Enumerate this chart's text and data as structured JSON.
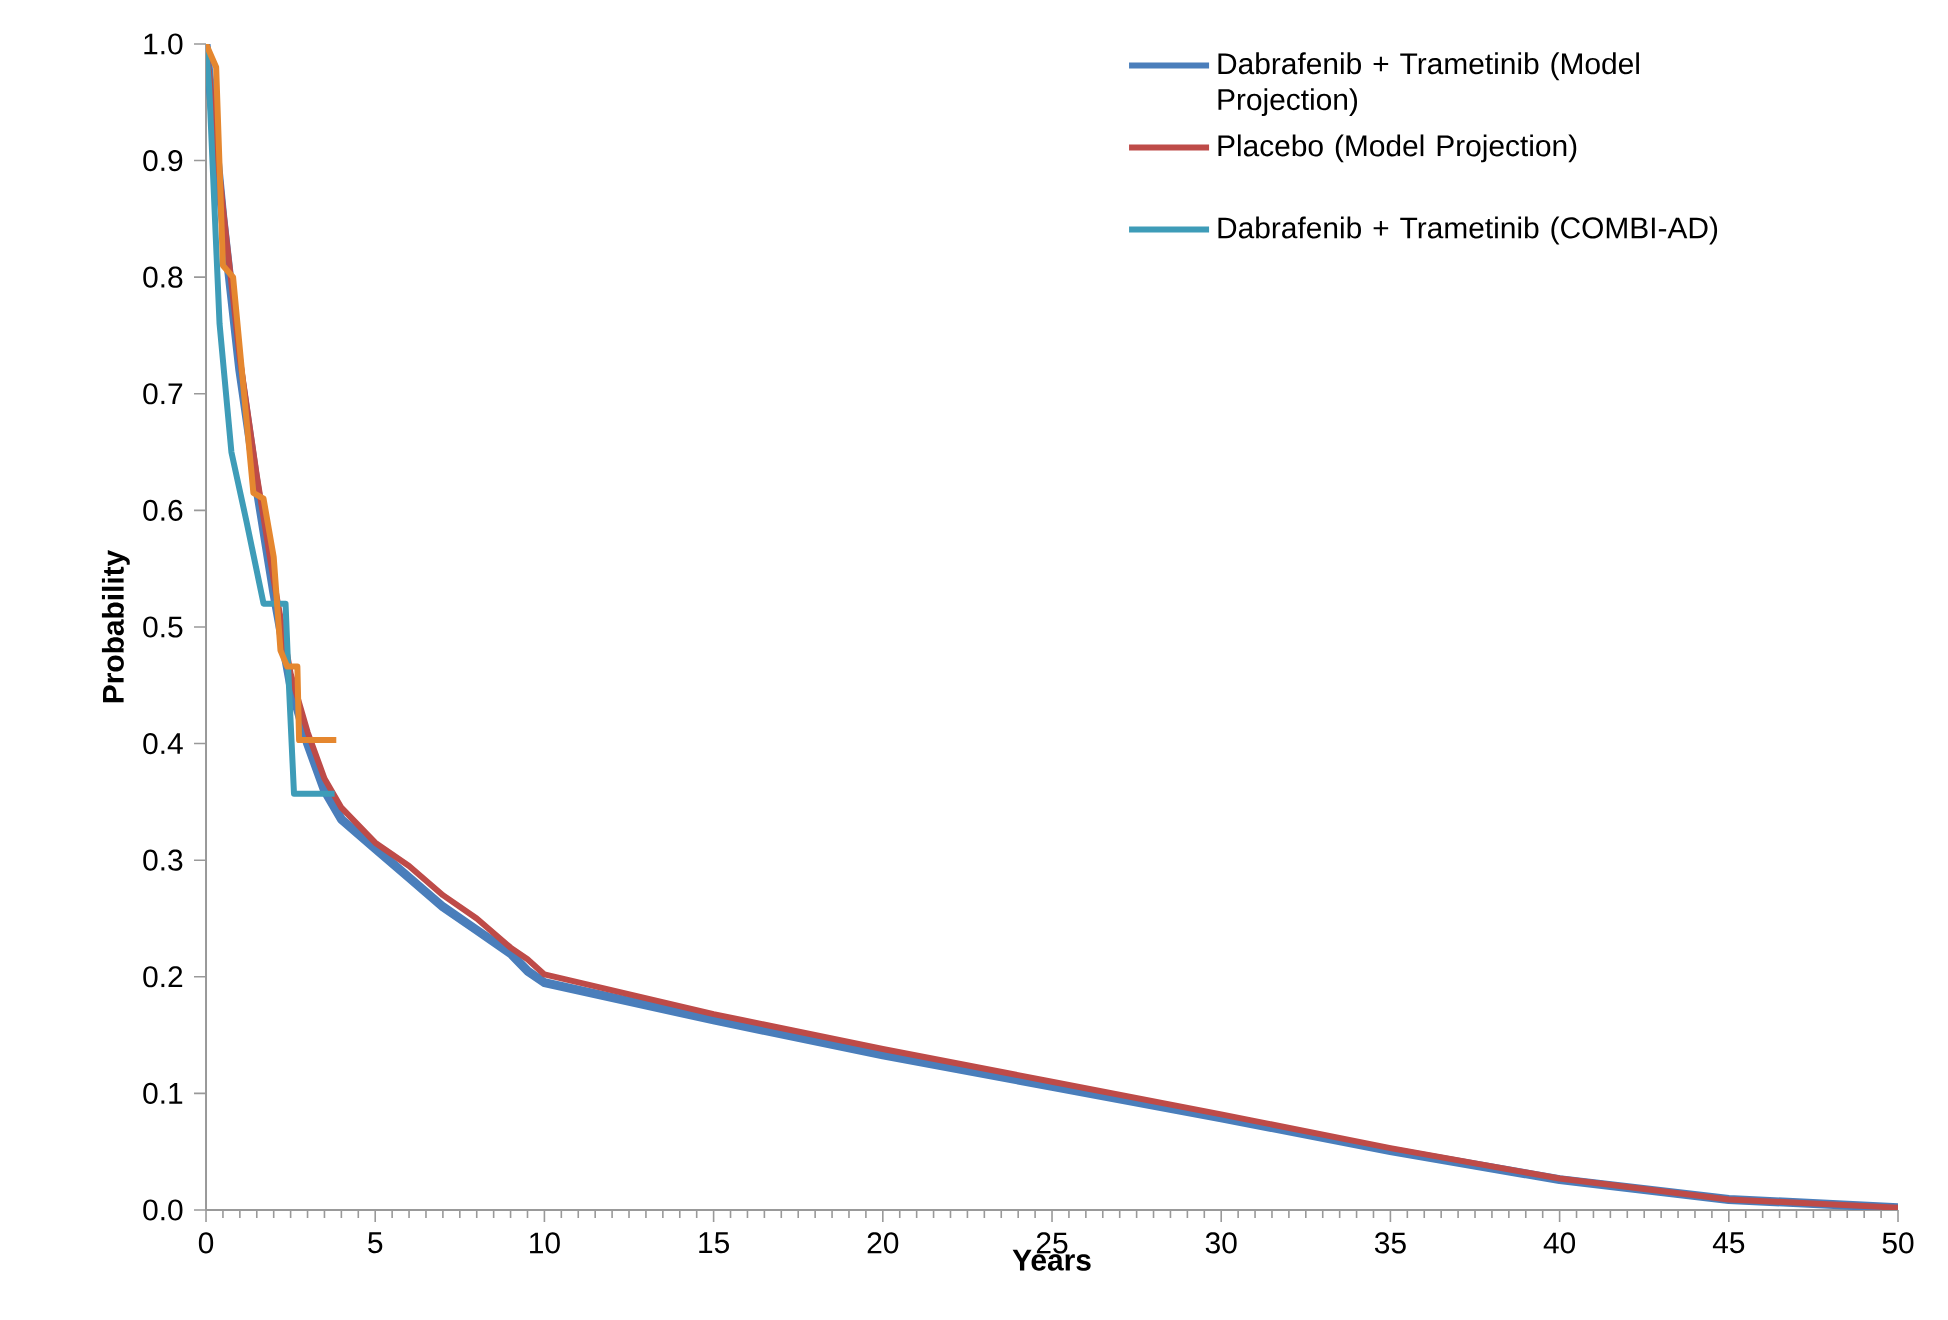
{
  "chart_data": {
    "type": "line",
    "xlabel": "Years",
    "ylabel": "Probability",
    "xlim": [
      0,
      50
    ],
    "ylim": [
      0,
      1
    ],
    "xticks": [
      0,
      5,
      10,
      15,
      20,
      25,
      30,
      35,
      40,
      45,
      50
    ],
    "yticks": [
      {
        "value": 0,
        "label": "0.0"
      },
      0.1,
      0.2,
      0.3,
      0.4,
      0.5,
      0.6,
      0.7,
      0.8,
      0.9,
      {
        "value": 1,
        "label": "1.0"
      }
    ],
    "grid": false,
    "legend": "top right",
    "marker": "none",
    "line_style": "solid",
    "series": [
      {
        "name": "Dabrafenib + Trametinib (Model Projection)",
        "color": "#4a7ebb",
        "x": [
          0,
          0.5,
          1,
          1.5,
          2,
          2.5,
          3,
          3.5,
          4,
          5,
          6,
          7,
          8,
          9,
          9.5,
          10,
          15,
          20,
          25,
          30,
          35,
          40,
          45,
          50
        ],
        "values": [
          1.0,
          0.85,
          0.72,
          0.62,
          0.53,
          0.45,
          0.4,
          0.36,
          0.335,
          0.31,
          0.285,
          0.26,
          0.24,
          0.22,
          0.205,
          0.195,
          0.163,
          0.133,
          0.106,
          0.079,
          0.051,
          0.026,
          0.009,
          0.002
        ]
      },
      {
        "name": "Placebo (Model Projection)",
        "color": "#be4b48",
        "x": [
          0,
          0.5,
          1,
          1.5,
          2,
          2.5,
          3,
          3.5,
          4,
          5,
          6,
          7,
          8,
          9,
          9.5,
          10,
          15,
          20,
          25,
          30,
          35,
          40,
          45,
          50
        ],
        "values": [
          1.0,
          0.86,
          0.73,
          0.63,
          0.54,
          0.46,
          0.41,
          0.37,
          0.345,
          0.315,
          0.295,
          0.27,
          0.25,
          0.225,
          0.215,
          0.202,
          0.168,
          0.138,
          0.11,
          0.082,
          0.053,
          0.027,
          0.009,
          0.002
        ]
      },
      {
        "name": "Dabrafenib + Trametinib (COMBI-AD)",
        "color": "#3e9cb8",
        "x": [
          0,
          0.1,
          0.4,
          0.75,
          1.2,
          1.7,
          2.35,
          2.45,
          2.6,
          3.8
        ],
        "values": [
          1.0,
          0.96,
          0.76,
          0.65,
          0.59,
          0.52,
          0.52,
          0.45,
          0.357,
          0.357
        ]
      },
      {
        "color": "#e5872f",
        "x": [
          0,
          0.3,
          0.5,
          0.8,
          1.4,
          1.7,
          2.0,
          2.2,
          2.4,
          2.7,
          2.75,
          3.85
        ],
        "values": [
          1.0,
          0.98,
          0.81,
          0.8,
          0.615,
          0.61,
          0.56,
          0.48,
          0.466,
          0.466,
          0.403,
          0.403
        ]
      }
    ]
  }
}
